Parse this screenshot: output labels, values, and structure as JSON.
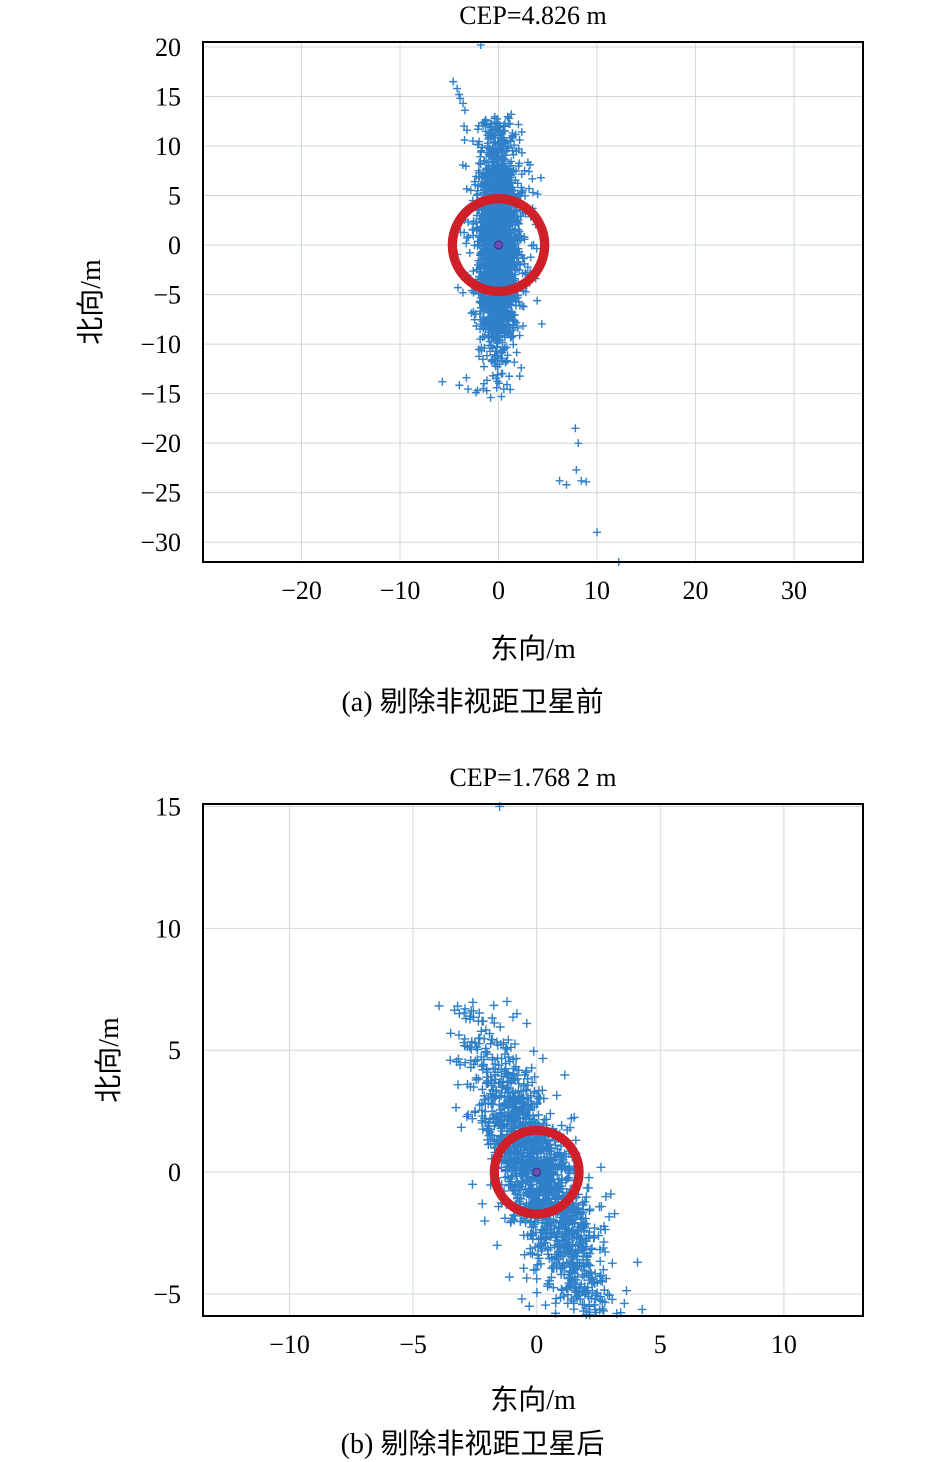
{
  "chart_data": [
    {
      "type": "scatter",
      "title": "CEP=4.826 m",
      "xlabel": "东向/m",
      "ylabel": "北向/m",
      "caption": "(a) 剔除非视距卫星前",
      "xlim": [
        -30,
        37
      ],
      "ylim": [
        -32,
        20.5
      ],
      "xticks": [
        -20,
        -10,
        0,
        10,
        20,
        30
      ],
      "yticks": [
        20,
        15,
        10,
        5,
        0,
        -5,
        -10,
        -15,
        -20,
        -25,
        -30
      ],
      "xtick_labels": [
        "−20",
        "−10",
        "0",
        "10",
        "20",
        "30"
      ],
      "ytick_labels": [
        "20",
        "15",
        "10",
        "5",
        "0",
        "−5",
        "−10",
        "−15",
        "−20",
        "−25",
        "−30"
      ],
      "grid": true,
      "cep_radius": 4.826,
      "center": [
        0,
        0
      ],
      "point_color": "#2f80c8",
      "circle_color": "#d0202a",
      "series": [
        {
          "marker": "+",
          "points": [
            [
              -1.8,
              20.2
            ],
            [
              -4.6,
              16.5
            ],
            [
              -4.2,
              15.8
            ],
            [
              -4.0,
              15.2
            ],
            [
              -3.6,
              14.3
            ],
            [
              -3.9,
              14.8
            ],
            [
              -3.4,
              13.6
            ],
            [
              1.3,
              13.2
            ],
            [
              -1.6,
              12.3
            ],
            [
              -3.5,
              12.0
            ],
            [
              -3.2,
              11.6
            ],
            [
              1.3,
              10.8
            ],
            [
              -0.3,
              11.2
            ],
            [
              -2.6,
              10.5
            ],
            [
              3.2,
              8.1
            ],
            [
              4.3,
              6.8
            ],
            [
              3.5,
              5.3
            ],
            [
              3.1,
              5.7
            ],
            [
              -5.7,
              -13.8
            ],
            [
              -2.3,
              -14.9
            ],
            [
              -0.8,
              -15.4
            ],
            [
              -1.2,
              -14.7
            ],
            [
              0.3,
              -15.3
            ],
            [
              7.8,
              -18.5
            ],
            [
              8.1,
              -20.0
            ],
            [
              7.9,
              -22.7
            ],
            [
              6.2,
              -23.8
            ],
            [
              6.9,
              -24.2
            ],
            [
              8.4,
              -23.8
            ],
            [
              8.9,
              -23.9
            ],
            [
              10.0,
              -29.0
            ],
            [
              12.2,
              -32.0
            ]
          ]
        }
      ]
    },
    {
      "type": "scatter",
      "title": "CEP=1.768 2 m",
      "xlabel": "东向/m",
      "ylabel": "北向/m",
      "caption": "(b) 剔除非视距卫星后",
      "xlim": [
        -13.5,
        13.2
      ],
      "ylim": [
        -5.9,
        15.1
      ],
      "xticks": [
        -10,
        -5,
        0,
        5,
        10
      ],
      "yticks": [
        15,
        10,
        5,
        0,
        -5
      ],
      "xtick_labels": [
        "−10",
        "−5",
        "0",
        "5",
        "10"
      ],
      "ytick_labels": [
        "15",
        "10",
        "5",
        "0",
        "−5"
      ],
      "grid": true,
      "cep_radius": 1.7682,
      "center": [
        0,
        0
      ],
      "point_color": "#2f80c8",
      "circle_color": "#d0202a",
      "series": [
        {
          "marker": "+",
          "points": [
            [
              -1.5,
              15.0
            ],
            [
              -2.9,
              6.7
            ],
            [
              -2.7,
              6.4
            ],
            [
              -1.2,
              7.0
            ],
            [
              -0.8,
              6.5
            ],
            [
              -0.4,
              6.1
            ],
            [
              -3.1,
              4.4
            ],
            [
              -2.8,
              3.6
            ],
            [
              -2.2,
              2.3
            ],
            [
              2.8,
              -1.0
            ],
            [
              3.0,
              -0.9
            ],
            [
              2.5,
              -2.6
            ],
            [
              2.1,
              -3.8
            ],
            [
              1.8,
              -4.6
            ],
            [
              1.4,
              -5.2
            ],
            [
              1.9,
              -5.7
            ],
            [
              2.0,
              -5.6
            ],
            [
              -0.3,
              -5.5
            ],
            [
              -0.6,
              -5.2
            ],
            [
              -2.6,
              -0.5
            ],
            [
              -2.2,
              -1.3
            ],
            [
              -1.6,
              -3.0
            ],
            [
              -1.1,
              -4.3
            ],
            [
              1.0,
              -4.8
            ],
            [
              -1.8,
              1.5
            ],
            [
              1.4,
              2.2
            ],
            [
              -2.1,
              -2.0
            ],
            [
              2.6,
              0.2
            ]
          ]
        }
      ]
    }
  ]
}
